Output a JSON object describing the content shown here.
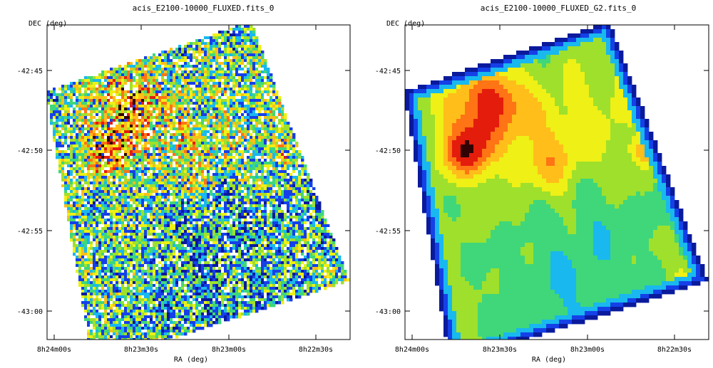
{
  "colorscale": [
    "#0a1a9c",
    "#1540e8",
    "#19b8ee",
    "#3fd77a",
    "#9fe02c",
    "#eef016",
    "#ffbe1a",
    "#ff7414",
    "#e41c0c",
    "#300404"
  ],
  "chart_data": [
    {
      "type": "heatmap",
      "title": "acis_E2100-10000_FLUXED.fits_0",
      "xlabel": "RA (deg)",
      "ylabel": "DEC (deg)",
      "x_ticks": [
        "8h24m00s",
        "8h23m30s",
        "8h23m00s",
        "8h22m30s"
      ],
      "y_ticks": [
        "-42:45",
        "-42:50",
        "-42:55",
        "-43:00"
      ],
      "style": "noisy-pixelated",
      "hotspots": [
        "north-east bright ridge",
        "central band",
        "east knot"
      ]
    },
    {
      "type": "heatmap",
      "title": "acis_E2100-10000_FLUXED_G2.fits_0",
      "xlabel": "RA (deg)",
      "ylabel": "DEC (deg)",
      "x_ticks": [
        "8h24m00s",
        "8h23m30s",
        "8h23m00s",
        "8h22m30s"
      ],
      "y_ticks": [
        "-42:45",
        "-42:50",
        "-42:55",
        "-43:00"
      ],
      "style": "gaussian-smoothed",
      "hotspots": [
        "north-east bright ridge",
        "central band",
        "east knot"
      ]
    }
  ]
}
